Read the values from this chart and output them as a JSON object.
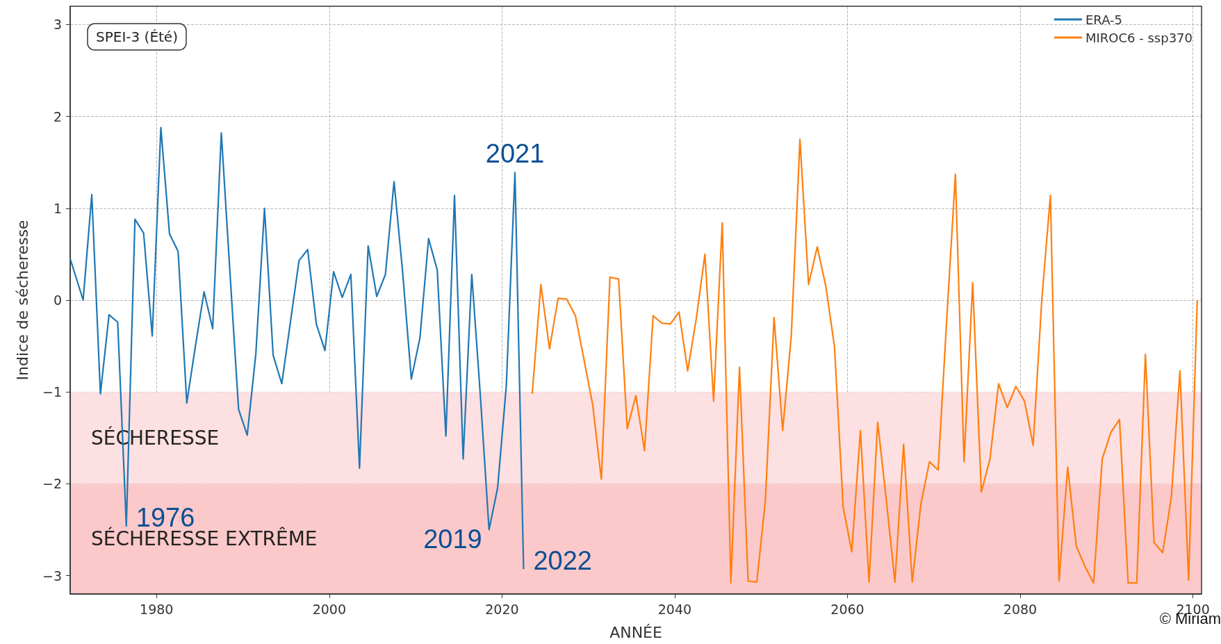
{
  "chart_data": {
    "type": "line",
    "title": "SPEI-3 (Été)",
    "xlabel": "ANNÉE",
    "ylabel": "Indice de sécheresse",
    "xlim": [
      1970,
      2101
    ],
    "xticks": [
      1980,
      2000,
      2020,
      2040,
      2060,
      2080,
      2100
    ],
    "ylim": [
      -3.2,
      3.2
    ],
    "yticks": [
      -3,
      -2,
      -1,
      0,
      1,
      2,
      3
    ],
    "grid": true,
    "legend": "top right",
    "line_style": "solid",
    "series": [
      {
        "name": "ERA-5",
        "color": "#1f77b4",
        "x": [
          1970,
          1971.5,
          1972.5,
          1973.5,
          1974.5,
          1975.5,
          1976.5,
          1977.5,
          1978.5,
          1979.5,
          1980.5,
          1981.5,
          1982.5,
          1983.5,
          1984.5,
          1985.5,
          1986.5,
          1987.5,
          1988.5,
          1989.5,
          1990.5,
          1991.5,
          1992.5,
          1993.5,
          1994.5,
          1995.5,
          1996.5,
          1997.5,
          1998.5,
          1999.5,
          2000.5,
          2001.5,
          2002.5,
          2003.5,
          2004.5,
          2005.5,
          2006.5,
          2007.5,
          2008.5,
          2009.5,
          2010.5,
          2011.5,
          2012.5,
          2013.5,
          2014.5,
          2015.5,
          2016.5,
          2017.5,
          2018.5,
          2019.5,
          2020.5,
          2021.5,
          2022.5
        ],
        "values": [
          0.45,
          0.0,
          1.15,
          -1.02,
          -0.16,
          -0.24,
          -2.46,
          0.88,
          0.73,
          -0.39,
          1.88,
          0.72,
          0.53,
          -1.12,
          -0.5,
          0.09,
          -0.31,
          1.82,
          0.3,
          -1.19,
          -1.47,
          -0.58,
          1.0,
          -0.6,
          -0.91,
          -0.24,
          0.43,
          0.55,
          -0.26,
          -0.55,
          0.31,
          0.03,
          0.28,
          -1.83,
          0.59,
          0.04,
          0.28,
          1.29,
          0.3,
          -0.86,
          -0.41,
          0.67,
          0.33,
          -1.48,
          1.14,
          -1.73,
          0.28,
          -1.05,
          -2.5,
          -2.04,
          -0.93,
          1.39,
          -2.93
        ]
      },
      {
        "name": "MIROC6 - ssp370",
        "color": "#ff7f0e",
        "x": [
          2023.5,
          2024.5,
          2025.5,
          2026.5,
          2027.5,
          2028.5,
          2029.5,
          2030.5,
          2031.5,
          2032.5,
          2033.5,
          2034.5,
          2035.5,
          2036.5,
          2037.5,
          2038.5,
          2039.5,
          2040.5,
          2041.5,
          2042.5,
          2043.5,
          2044.5,
          2045.5,
          2046.5,
          2047.5,
          2048.5,
          2049.5,
          2050.5,
          2051.5,
          2052.5,
          2053.5,
          2054.5,
          2055.5,
          2056.5,
          2057.5,
          2058.5,
          2059.5,
          2060.5,
          2061.5,
          2062.5,
          2063.5,
          2064.5,
          2065.5,
          2066.5,
          2067.5,
          2068.5,
          2069.5,
          2070.5,
          2071.5,
          2072.5,
          2073.5,
          2074.5,
          2075.5,
          2076.5,
          2077.5,
          2078.5,
          2079.5,
          2080.5,
          2081.5,
          2082.5,
          2083.5,
          2084.5,
          2085.5,
          2086.5,
          2087.5,
          2088.5,
          2089.5,
          2090.5,
          2091.5,
          2092.5,
          2093.5,
          2094.5,
          2095.5,
          2096.5,
          2097.5,
          2098.5,
          2099.5,
          2100.5
        ],
        "values": [
          -1.02,
          0.17,
          -0.53,
          0.02,
          0.01,
          -0.17,
          -0.65,
          -1.14,
          -1.95,
          0.25,
          0.23,
          -1.4,
          -1.04,
          -1.64,
          -0.17,
          -0.25,
          -0.26,
          -0.13,
          -0.77,
          -0.2,
          0.5,
          -1.1,
          0.84,
          -3.08,
          -0.73,
          -3.06,
          -3.07,
          -2.18,
          -0.19,
          -1.42,
          -0.38,
          1.75,
          0.17,
          0.58,
          0.15,
          -0.51,
          -2.25,
          -2.74,
          -1.42,
          -3.07,
          -1.33,
          -2.18,
          -3.07,
          -1.57,
          -3.07,
          -2.22,
          -1.76,
          -1.85,
          -0.2,
          1.37,
          -1.76,
          0.19,
          -2.09,
          -1.73,
          -0.91,
          -1.17,
          -0.94,
          -1.1,
          -1.58,
          0.0,
          1.14,
          -3.06,
          -1.82,
          -2.68,
          -2.9,
          -3.08,
          -1.73,
          -1.44,
          -1.3,
          -3.08,
          -3.08,
          -0.59,
          -2.64,
          -2.75,
          -2.15,
          -0.77,
          -3.05,
          0.0
        ]
      }
    ],
    "bands": [
      {
        "axis": "y",
        "from": -2,
        "to": -1,
        "label": "SÉCHERESSE",
        "color": "#fde0e1"
      },
      {
        "axis": "y",
        "from": -3.2,
        "to": -2,
        "label": "SÉCHERESSE EXTRÊME",
        "color": "#fcc9ca"
      }
    ],
    "annotations": [
      {
        "text": "1976",
        "x": 1976.5,
        "y": -2.46
      },
      {
        "text": "2021",
        "x": 2021.5,
        "y": 1.39
      },
      {
        "text": "2019",
        "x": 2018.5,
        "y": -2.5
      },
      {
        "text": "2022",
        "x": 2022.5,
        "y": -2.93
      },
      "© Miriam"
    ]
  }
}
